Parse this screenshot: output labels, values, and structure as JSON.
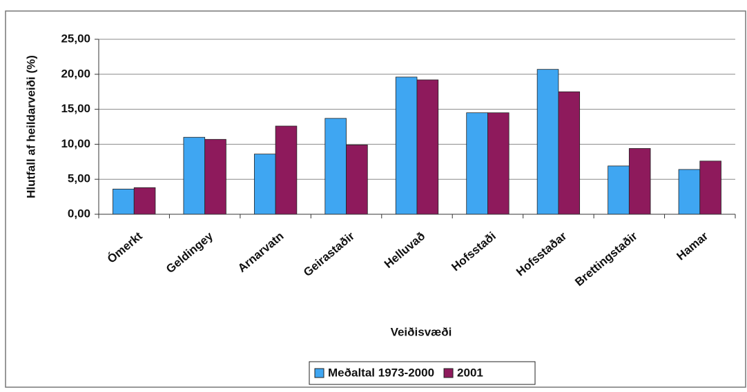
{
  "chart_data": {
    "type": "bar",
    "categories": [
      "Ómerkt",
      "Geldingey",
      "Arnarvatn",
      "Geirastaðir",
      "Helluvað",
      "Hofsstaði",
      "Hofsstaðar",
      "Brettingstaðir",
      "Hamar"
    ],
    "series": [
      {
        "name": "Meðaltal 1973-2000",
        "color": "#3fa6f2",
        "values": [
          3.6,
          11.0,
          8.6,
          13.7,
          19.6,
          14.5,
          20.7,
          6.9,
          6.4
        ]
      },
      {
        "name": "2001",
        "color": "#8e1a5c",
        "values": [
          3.8,
          10.7,
          12.6,
          9.9,
          19.2,
          14.5,
          17.5,
          9.4,
          7.6
        ]
      }
    ],
    "x_label": "Veiðisvæði",
    "y_label": "Hlutfall af heildarveiði (%)",
    "ylim": [
      0,
      25
    ],
    "yticks": [
      {
        "value": 0,
        "label": "0,00"
      },
      {
        "value": 5,
        "label": "5,00"
      },
      {
        "value": 10,
        "label": "10,00"
      },
      {
        "value": 15,
        "label": "15,00"
      },
      {
        "value": 20,
        "label": "20,00"
      },
      {
        "value": 25,
        "label": "25,00"
      }
    ],
    "grid": true,
    "legend": "bottom"
  }
}
